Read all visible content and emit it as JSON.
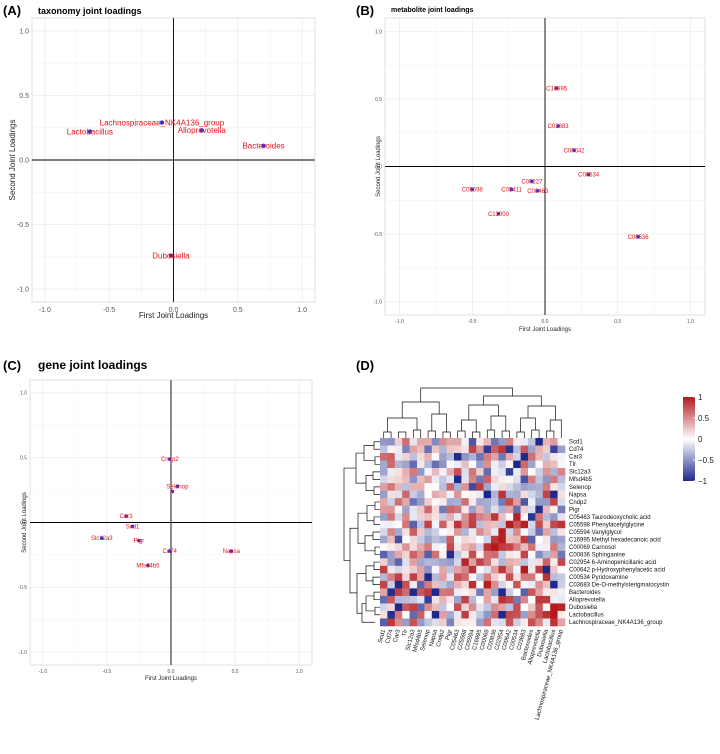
{
  "chart_data": [
    {
      "type": "scatter",
      "panel": "(A)",
      "title": "taxonomy joint loadings",
      "xlabel": "First Joint Loadings",
      "ylabel": "Second Joint Loadings",
      "xlim": [
        -1.1,
        1.1
      ],
      "ylim": [
        -1.1,
        1.1
      ],
      "xticks": [
        -1.0,
        -0.5,
        0.0,
        0.5,
        1.0
      ],
      "yticks": [
        -1.0,
        -0.5,
        0.0,
        0.5,
        1.0
      ],
      "xtick_labels": [
        "-1.0",
        "-0.5",
        "0.0",
        "0.5",
        "1.0"
      ],
      "ytick_labels": [
        "-1.0",
        "-0.5",
        "0.0",
        "0.5",
        "1.0"
      ],
      "points": [
        {
          "label": "Lachnospiraceae_NK4A136_group",
          "x": -0.09,
          "y": 0.29
        },
        {
          "label": "Lactobacillus",
          "x": -0.65,
          "y": 0.22
        },
        {
          "label": "Alloprevotella",
          "x": 0.22,
          "y": 0.23
        },
        {
          "label": "Bacteroides",
          "x": 0.7,
          "y": 0.11
        },
        {
          "label": "Dubosiella",
          "x": -0.02,
          "y": -0.74
        }
      ]
    },
    {
      "type": "scatter",
      "panel": "(B)",
      "title": "metabolite joint loadings",
      "xlabel": "First Joint Loadings",
      "ylabel": "Second Joint Loadings",
      "xlim": [
        -1.1,
        1.1
      ],
      "ylim": [
        -1.1,
        1.1
      ],
      "xticks": [
        -1.0,
        -0.5,
        0.0,
        0.5,
        1.0
      ],
      "yticks": [
        -1.0,
        -0.5,
        0.0,
        0.5,
        1.0
      ],
      "xtick_labels": [
        "-1.0",
        "-0.5",
        "0.0",
        "0.5",
        "1.0"
      ],
      "ytick_labels": [
        "-1.0",
        "-0.5",
        "0.0",
        "0.5",
        "1.0"
      ],
      "points": [
        {
          "label": "C16995",
          "x": 0.08,
          "y": 0.58
        },
        {
          "label": "C03683",
          "x": 0.09,
          "y": 0.3
        },
        {
          "label": "C00642",
          "x": 0.2,
          "y": 0.12
        },
        {
          "label": "C00534",
          "x": 0.3,
          "y": -0.06
        },
        {
          "label": "C00227",
          "x": -0.09,
          "y": -0.11
        },
        {
          "label": "C05698",
          "x": -0.5,
          "y": -0.17
        },
        {
          "label": "C05411",
          "x": -0.23,
          "y": -0.17
        },
        {
          "label": "C00463",
          "x": -0.05,
          "y": -0.18
        },
        {
          "label": "C13000",
          "x": -0.32,
          "y": -0.35
        },
        {
          "label": "C00536",
          "x": 0.64,
          "y": -0.52
        }
      ]
    },
    {
      "type": "scatter",
      "panel": "(C)",
      "title": "gene joint loadings",
      "xlabel": "First Joint Loadings",
      "ylabel": "Second Joint Loadings",
      "xlim": [
        -1.1,
        1.1
      ],
      "ylim": [
        -1.1,
        1.1
      ],
      "xticks": [
        -1.0,
        -0.5,
        0.0,
        0.5,
        1.0
      ],
      "yticks": [
        -1.0,
        -0.5,
        0.0,
        0.5,
        1.0
      ],
      "xtick_labels": [
        "-1.0",
        "-0.5",
        "0.0",
        "0.5",
        "1.0"
      ],
      "ytick_labels": [
        "-1.0",
        "-0.5",
        "0.0",
        "0.5",
        "1.0"
      ],
      "points": [
        {
          "label": "Cndp2",
          "x": -0.01,
          "y": 0.49
        },
        {
          "label": "Selenop",
          "x": 0.05,
          "y": 0.28
        },
        {
          "label": "Ir",
          "x": 0.01,
          "y": 0.24
        },
        {
          "label": "Car3",
          "x": -0.35,
          "y": 0.05
        },
        {
          "label": "Scd1",
          "x": -0.3,
          "y": -0.03
        },
        {
          "label": "Slc12a3",
          "x": -0.54,
          "y": -0.12
        },
        {
          "label": "Pigr",
          "x": -0.25,
          "y": -0.14
        },
        {
          "label": "Cd74",
          "x": -0.01,
          "y": -0.22
        },
        {
          "label": "Napsa",
          "x": 0.47,
          "y": -0.22
        },
        {
          "label": "Mfsd4b5",
          "x": -0.18,
          "y": -0.33
        }
      ]
    },
    {
      "type": "heatmap",
      "panel": "(D)",
      "rows": [
        "Scd1",
        "Cd74",
        "Car3",
        "Tlr",
        "Slc12a3",
        "Mfsd4b5",
        "Selenop",
        "Napsa",
        "Cndp2",
        "Pigr",
        "C05463 Taurodeoxycholic acid",
        "C05598 Phenylacetylglycine",
        "C05594 Vanylglycol",
        "C16995 Methyl hexadecanoic acid",
        "C00069 Carnosol",
        "C00836 Sphinganine",
        "C02954 6-Aminopenicillanic acid",
        "C00642 p-Hydroxyphenylacetic acid",
        "C00534 Pyridoxamine",
        "C03683 De-O-methylsterigmatocystin",
        "Bacteroides",
        "Alloprevotella",
        "Dubosiella",
        "Lactobacillus",
        "Lachnospiraceae_NK4A136_group"
      ],
      "columns": [
        "Scd1",
        "Cd74",
        "Car3",
        "Tlr",
        "Slc12a3",
        "Mfsd4b5",
        "Selenop",
        "Napsa",
        "Cndp2",
        "Pigr",
        "C05463",
        "C05598",
        "C05594",
        "C16995",
        "C00069",
        "C00836",
        "C02954",
        "C00642",
        "C00534",
        "C03683",
        "Bacteroides",
        "Alloprevotella",
        "Dubosiella",
        "Lactobacillus",
        "Lachnospiraceae_NK4A136_group"
      ],
      "color_scale": {
        "low": "#1d2a8c",
        "mid": "#ffffff",
        "high": "#b3191d",
        "min": -1,
        "max": 1
      },
      "legend_ticks": [
        1,
        0.5,
        0,
        -0.5,
        -1
      ],
      "legend_labels": [
        "1",
        "0.5",
        "0",
        "−0.5",
        "−1"
      ]
    }
  ]
}
